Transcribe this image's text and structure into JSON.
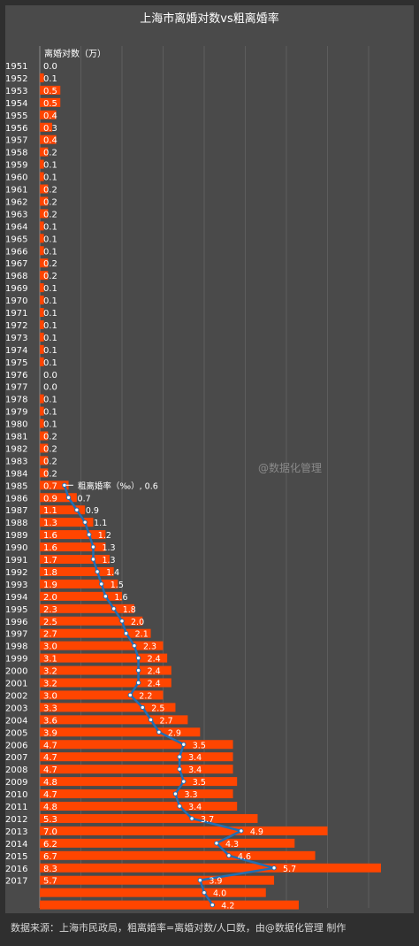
{
  "chart_data": {
    "type": "bar",
    "title": "上海市离婚对数vs粗离婚率",
    "bar_series_name": "离婚对数（万）",
    "line_series_label": "粗离婚率（‰）, 0.6",
    "categories": [
      "1951",
      "1952",
      "1953",
      "1954",
      "1955",
      "1956",
      "1957",
      "1958",
      "1959",
      "1960",
      "1961",
      "1962",
      "1963",
      "1964",
      "1965",
      "1966",
      "1967",
      "1968",
      "1969",
      "1970",
      "1971",
      "1972",
      "1973",
      "1974",
      "1975",
      "1976",
      "1977",
      "1978",
      "1979",
      "1980",
      "1981",
      "1982",
      "1983",
      "1984",
      "1985",
      "1986",
      "1987",
      "1988",
      "1989",
      "1990",
      "1991",
      "1992",
      "1993",
      "1994",
      "1995",
      "1996",
      "1997",
      "1998",
      "1999",
      "2000",
      "2001",
      "2002",
      "2003",
      "2004",
      "2005",
      "2006",
      "2007",
      "2008",
      "2009",
      "2010",
      "2011",
      "2012",
      "2013",
      "2014",
      "2015",
      "2016",
      "2017",
      "",
      ""
    ],
    "bar_values": [
      0.0,
      0.1,
      0.5,
      0.5,
      0.4,
      0.3,
      0.4,
      0.2,
      0.1,
      0.1,
      0.2,
      0.2,
      0.2,
      0.1,
      0.1,
      0.1,
      0.2,
      0.2,
      0.1,
      0.1,
      0.1,
      0.1,
      0.1,
      0.1,
      0.1,
      0.0,
      0.0,
      0.1,
      0.1,
      0.1,
      0.2,
      0.2,
      0.2,
      0.2,
      0.7,
      0.9,
      1.1,
      1.3,
      1.6,
      1.6,
      1.7,
      1.8,
      1.9,
      2.0,
      2.3,
      2.5,
      2.7,
      3.0,
      3.1,
      3.2,
      3.2,
      3.0,
      3.3,
      3.6,
      3.9,
      4.7,
      4.7,
      4.7,
      4.8,
      4.7,
      4.8,
      5.3,
      7.0,
      6.2,
      6.7,
      8.3,
      5.7,
      null,
      null
    ],
    "bar_labels": [
      "0.0",
      "0.1",
      "0.5",
      "0.5",
      "0.4",
      "0.3",
      "0.4",
      "0.2",
      "0.1",
      "0.1",
      "0.2",
      "0.2",
      "0.2",
      "0.1",
      "0.1",
      "0.1",
      "0.2",
      "0.2",
      "0.1",
      "0.1",
      "0.1",
      "0.1",
      "0.1",
      "0.1",
      "0.1",
      "0.0",
      "0.0",
      "0.1",
      "0.1",
      "0.1",
      "0.2",
      "0.2",
      "0.2",
      "0.2",
      "0.7",
      "0.9",
      "1.1",
      "1.3",
      "1.6",
      "1.6",
      "1.7",
      "1.8",
      "1.9",
      "2.0",
      "2.3",
      "2.5",
      "2.7",
      "3.0",
      "3.1",
      "3.2",
      "3.2",
      "3.0",
      "3.3",
      "3.6",
      "3.9",
      "4.7",
      "4.7",
      "4.7",
      "4.8",
      "4.7",
      "4.8",
      "5.3",
      "7.0",
      "6.2",
      "6.7",
      "8.3",
      "5.7",
      "",
      ""
    ],
    "extra_bars": [
      {
        "row": 67,
        "value": 5.5
      },
      {
        "row": 68,
        "value": 6.3
      }
    ],
    "line_start_row": 34,
    "line_values": [
      0.6,
      0.7,
      0.9,
      1.1,
      1.2,
      1.3,
      1.3,
      1.4,
      1.5,
      1.6,
      1.8,
      2.0,
      2.1,
      2.3,
      2.4,
      2.4,
      2.4,
      2.2,
      2.5,
      2.7,
      2.9,
      3.5,
      3.4,
      3.4,
      3.5,
      3.3,
      3.4,
      3.7,
      4.9,
      4.3,
      4.6,
      5.7,
      3.9,
      4.0,
      4.2
    ],
    "line_labels": [
      "",
      "0.7",
      "0.9",
      "1.1",
      "1.2",
      "1.3",
      "1.3",
      "1.4",
      "1.5",
      "1.6",
      "1.8",
      "2.0",
      "2.1",
      "2.3",
      "2.4",
      "2.4",
      "2.4",
      "2.2",
      "2.5",
      "2.7",
      "2.9",
      "3.5",
      "3.4",
      "3.4",
      "3.5",
      "3.3",
      "3.4",
      "3.7",
      "4.9",
      "4.3",
      "4.6",
      "5.7",
      "3.9",
      "4.0",
      "4.2"
    ],
    "grid": true,
    "colors": {
      "bar": "#ff4500",
      "line": "#1f6fb5",
      "background": "#4a4a4a",
      "text": "#ffffff"
    }
  },
  "watermark": "@数据化管理",
  "footer": "数据来源：上海市民政局，粗离婚率=离婚对数/人口数，由@数据化管理  制作"
}
